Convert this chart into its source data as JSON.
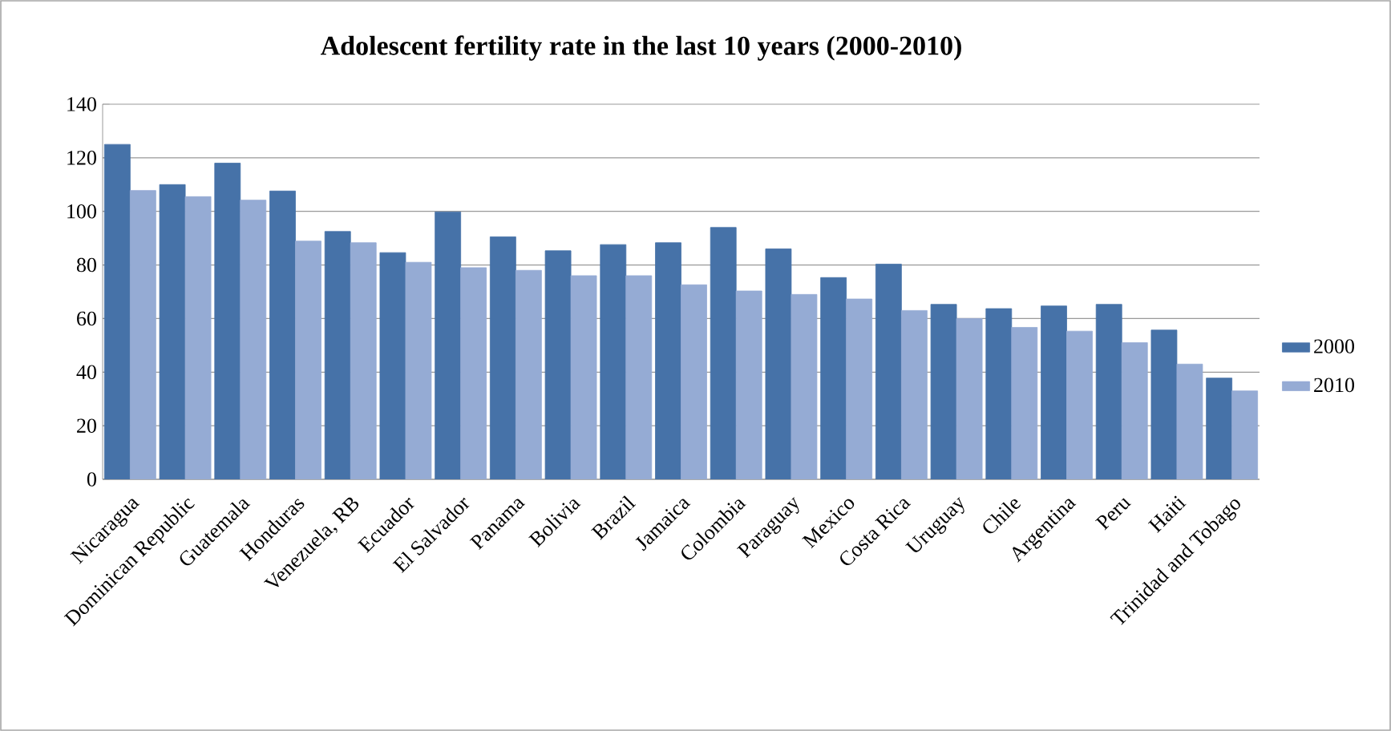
{
  "chart_data": {
    "type": "bar",
    "title": "Adolescent fertility rate in the last 10 years (2000-2010)",
    "categories": [
      "Nicaragua",
      "Dominican Republic",
      "Guatemala",
      "Honduras",
      "Venezuela, RB",
      "Ecuador",
      "El Salvador",
      "Panama",
      "Bolivia",
      "Brazil",
      "Jamaica",
      "Colombia",
      "Paraguay",
      "Mexico",
      "Costa Rica",
      "Uruguay",
      "Chile",
      "Argentina",
      "Peru",
      "Haiti",
      "Trinidad and Tobago"
    ],
    "series": [
      {
        "name": "2000",
        "color": "#4672a8",
        "values": [
          125,
          110,
          118,
          107.6,
          92.5,
          84.6,
          99.8,
          90.5,
          85.3,
          87.6,
          88.3,
          94,
          86,
          75.3,
          80.3,
          65.3,
          63.7,
          64.7,
          65.3,
          55.7,
          37.8
        ]
      },
      {
        "name": "2010",
        "color": "#95abd4",
        "values": [
          107.8,
          105.5,
          104.2,
          88.9,
          88.3,
          81,
          79,
          78,
          76,
          76,
          72.6,
          70.3,
          69,
          67.3,
          63,
          60,
          56.7,
          55.3,
          51,
          43,
          33
        ]
      }
    ],
    "ylim": [
      0,
      140
    ],
    "yticks": [
      0,
      20,
      40,
      60,
      80,
      100,
      120,
      140
    ],
    "grid": "y",
    "legend": "right"
  }
}
